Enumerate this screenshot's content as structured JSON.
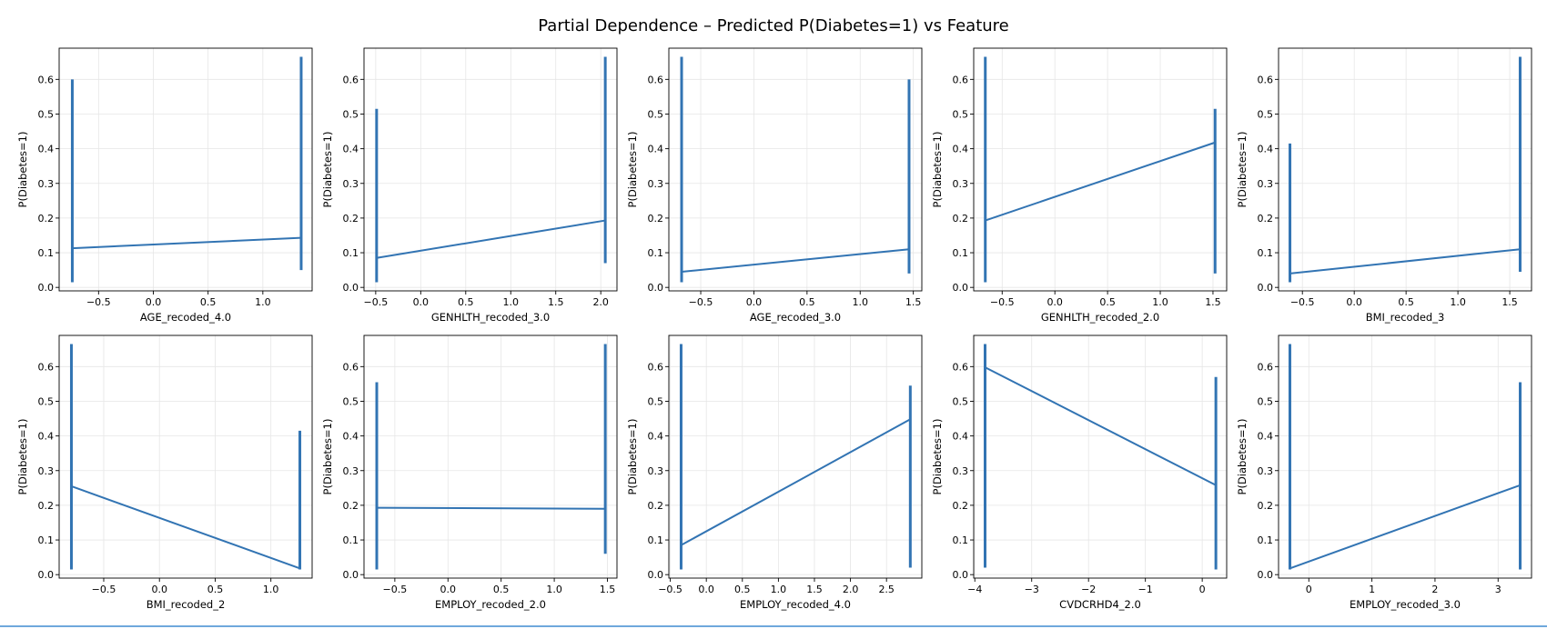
{
  "title": "Partial Dependence – Predicted P(Diabetes=1) vs Feature",
  "colors": {
    "line": "#3274b3",
    "grid": "#e6e6e6",
    "axis": "#000000"
  },
  "chart_data": [
    {
      "type": "line",
      "xlabel": "AGE_recoded_4.0",
      "ylabel": "P(Diabetes=1)",
      "xlim": [
        -0.86,
        1.45
      ],
      "ylim": [
        -0.01,
        0.69
      ],
      "xticks": [
        -0.5,
        0.0,
        0.5,
        1.0
      ],
      "yticks": [
        0.0,
        0.1,
        0.2,
        0.3,
        0.4,
        0.5,
        0.6
      ],
      "grid": true,
      "pdp": {
        "x": [
          -0.74,
          1.35
        ],
        "y": [
          0.113,
          0.143
        ]
      },
      "ice_spans": [
        {
          "x": -0.74,
          "ymin": 0.015,
          "ymax": 0.6
        },
        {
          "x": 1.35,
          "ymin": 0.05,
          "ymax": 0.665
        }
      ]
    },
    {
      "type": "line",
      "xlabel": "GENHLTH_recoded_3.0",
      "ylabel": "P(Diabetes=1)",
      "xlim": [
        -0.63,
        2.18
      ],
      "ylim": [
        -0.01,
        0.69
      ],
      "xticks": [
        -0.5,
        0.0,
        0.5,
        1.0,
        1.5,
        2.0
      ],
      "yticks": [
        0.0,
        0.1,
        0.2,
        0.3,
        0.4,
        0.5,
        0.6
      ],
      "grid": true,
      "pdp": {
        "x": [
          -0.49,
          2.05
        ],
        "y": [
          0.085,
          0.193
        ]
      },
      "ice_spans": [
        {
          "x": -0.49,
          "ymin": 0.015,
          "ymax": 0.515
        },
        {
          "x": 2.05,
          "ymin": 0.07,
          "ymax": 0.665
        }
      ]
    },
    {
      "type": "line",
      "xlabel": "AGE_recoded_3.0",
      "ylabel": "P(Diabetes=1)",
      "xlim": [
        -0.8,
        1.58
      ],
      "ylim": [
        -0.01,
        0.69
      ],
      "xticks": [
        -0.5,
        0.0,
        0.5,
        1.0,
        1.5
      ],
      "yticks": [
        0.0,
        0.1,
        0.2,
        0.3,
        0.4,
        0.5,
        0.6
      ],
      "grid": true,
      "pdp": {
        "x": [
          -0.68,
          1.46
        ],
        "y": [
          0.045,
          0.11
        ]
      },
      "ice_spans": [
        {
          "x": -0.68,
          "ymin": 0.015,
          "ymax": 0.665
        },
        {
          "x": 1.46,
          "ymin": 0.04,
          "ymax": 0.6
        }
      ]
    },
    {
      "type": "line",
      "xlabel": "GENHLTH_recoded_2.0",
      "ylabel": "P(Diabetes=1)",
      "xlim": [
        -0.77,
        1.63
      ],
      "ylim": [
        -0.01,
        0.69
      ],
      "xticks": [
        -0.5,
        0.0,
        0.5,
        1.0,
        1.5
      ],
      "yticks": [
        0.0,
        0.1,
        0.2,
        0.3,
        0.4,
        0.5,
        0.6
      ],
      "grid": true,
      "pdp": {
        "x": [
          -0.66,
          1.52
        ],
        "y": [
          0.193,
          0.418
        ]
      },
      "ice_spans": [
        {
          "x": -0.66,
          "ymin": 0.015,
          "ymax": 0.665
        },
        {
          "x": 1.52,
          "ymin": 0.04,
          "ymax": 0.515
        }
      ]
    },
    {
      "type": "line",
      "xlabel": "BMI_recoded_3",
      "ylabel": "P(Diabetes=1)",
      "xlim": [
        -0.73,
        1.71
      ],
      "ylim": [
        -0.01,
        0.69
      ],
      "xticks": [
        -0.5,
        0.0,
        0.5,
        1.0,
        1.5
      ],
      "yticks": [
        0.0,
        0.1,
        0.2,
        0.3,
        0.4,
        0.5,
        0.6
      ],
      "grid": true,
      "pdp": {
        "x": [
          -0.62,
          1.6
        ],
        "y": [
          0.04,
          0.11
        ]
      },
      "ice_spans": [
        {
          "x": -0.62,
          "ymin": 0.015,
          "ymax": 0.415
        },
        {
          "x": 1.6,
          "ymin": 0.045,
          "ymax": 0.665
        }
      ]
    },
    {
      "type": "line",
      "xlabel": "BMI_recoded_2",
      "ylabel": "P(Diabetes=1)",
      "xlim": [
        -0.9,
        1.37
      ],
      "ylim": [
        -0.01,
        0.69
      ],
      "xticks": [
        -0.5,
        0.0,
        0.5,
        1.0
      ],
      "yticks": [
        0.0,
        0.1,
        0.2,
        0.3,
        0.4,
        0.5,
        0.6
      ],
      "grid": true,
      "pdp": {
        "x": [
          -0.79,
          1.26
        ],
        "y": [
          0.255,
          0.018
        ]
      },
      "ice_spans": [
        {
          "x": -0.79,
          "ymin": 0.015,
          "ymax": 0.665
        },
        {
          "x": 1.26,
          "ymin": 0.015,
          "ymax": 0.415
        }
      ]
    },
    {
      "type": "line",
      "xlabel": "EMPLOY_recoded_2.0",
      "ylabel": "P(Diabetes=1)",
      "xlim": [
        -0.79,
        1.59
      ],
      "ylim": [
        -0.01,
        0.69
      ],
      "xticks": [
        -0.5,
        0.0,
        0.5,
        1.0,
        1.5
      ],
      "yticks": [
        0.0,
        0.1,
        0.2,
        0.3,
        0.4,
        0.5,
        0.6
      ],
      "grid": true,
      "pdp": {
        "x": [
          -0.67,
          1.48
        ],
        "y": [
          0.193,
          0.19
        ]
      },
      "ice_spans": [
        {
          "x": -0.67,
          "ymin": 0.015,
          "ymax": 0.555
        },
        {
          "x": 1.48,
          "ymin": 0.06,
          "ymax": 0.665
        }
      ]
    },
    {
      "type": "line",
      "xlabel": "EMPLOY_recoded_4.0",
      "ylabel": "P(Diabetes=1)",
      "xlim": [
        -0.52,
        2.99
      ],
      "ylim": [
        -0.01,
        0.69
      ],
      "xticks": [
        -0.5,
        0.0,
        0.5,
        1.0,
        1.5,
        2.0,
        2.5
      ],
      "yticks": [
        0.0,
        0.1,
        0.2,
        0.3,
        0.4,
        0.5,
        0.6
      ],
      "grid": true,
      "pdp": {
        "x": [
          -0.35,
          2.83
        ],
        "y": [
          0.085,
          0.448
        ]
      },
      "ice_spans": [
        {
          "x": -0.35,
          "ymin": 0.015,
          "ymax": 0.665
        },
        {
          "x": 2.83,
          "ymin": 0.02,
          "ymax": 0.545
        }
      ]
    },
    {
      "type": "line",
      "xlabel": "CVDCRHD4_2.0",
      "ylabel": "P(Diabetes=1)",
      "xlim": [
        -4.02,
        0.43
      ],
      "ylim": [
        -0.01,
        0.69
      ],
      "xticks": [
        -4,
        -3,
        -2,
        -1,
        0
      ],
      "yticks": [
        0.0,
        0.1,
        0.2,
        0.3,
        0.4,
        0.5,
        0.6
      ],
      "grid": true,
      "pdp": {
        "x": [
          -3.82,
          0.24
        ],
        "y": [
          0.598,
          0.258
        ]
      },
      "ice_spans": [
        {
          "x": -3.82,
          "ymin": 0.02,
          "ymax": 0.665
        },
        {
          "x": 0.24,
          "ymin": 0.015,
          "ymax": 0.57
        }
      ]
    },
    {
      "type": "line",
      "xlabel": "EMPLOY_recoded_3.0",
      "ylabel": "P(Diabetes=1)",
      "xlim": [
        -0.48,
        3.53
      ],
      "ylim": [
        -0.01,
        0.69
      ],
      "xticks": [
        0,
        1,
        2,
        3
      ],
      "yticks": [
        0.0,
        0.1,
        0.2,
        0.3,
        0.4,
        0.5,
        0.6
      ],
      "grid": true,
      "pdp": {
        "x": [
          -0.3,
          3.35
        ],
        "y": [
          0.018,
          0.258
        ]
      },
      "ice_spans": [
        {
          "x": -0.3,
          "ymin": 0.015,
          "ymax": 0.665
        },
        {
          "x": 3.35,
          "ymin": 0.015,
          "ymax": 0.555
        }
      ]
    }
  ]
}
